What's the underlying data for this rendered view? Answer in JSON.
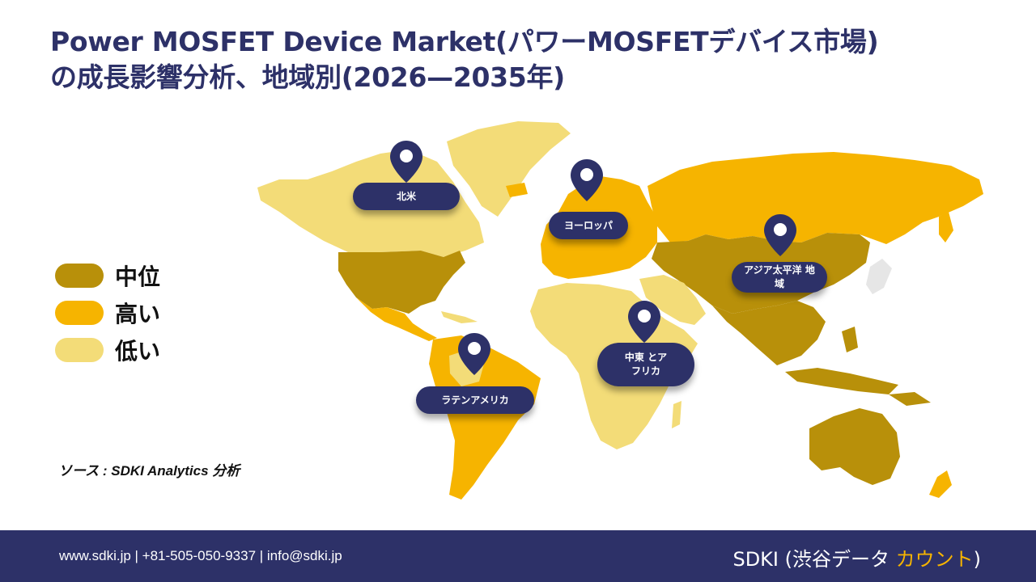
{
  "title": {
    "line1": "Power MOSFET Device Market(パワーMOSFETデバイス市場)",
    "line2": "の成長影響分析、地域別(2026—2035年)"
  },
  "legend": [
    {
      "label": "中位",
      "color": "#b8900a"
    },
    {
      "label": "高い",
      "color": "#f6b400"
    },
    {
      "label": "低い",
      "color": "#f3dc78"
    }
  ],
  "regions": [
    {
      "label": "北米"
    },
    {
      "label": "ヨーロッパ"
    },
    {
      "label": "アジア太平洋 地域"
    },
    {
      "label": "中東 とアフリカ"
    },
    {
      "label": "ラテンアメリカ"
    }
  ],
  "source": "ソース : SDKI Analytics 分析",
  "footer": {
    "contact": "www.sdki.jp | +81-505-050-9337 | info@sdki.jp",
    "brand_prefix": "SDKI (渋谷データ ",
    "brand_accent": "カウント",
    "brand_suffix": ")"
  },
  "colors": {
    "navy": "#2d3168",
    "medium": "#b8900a",
    "high": "#f6b400",
    "low": "#f3dc78",
    "other": "#e6e6e6"
  }
}
